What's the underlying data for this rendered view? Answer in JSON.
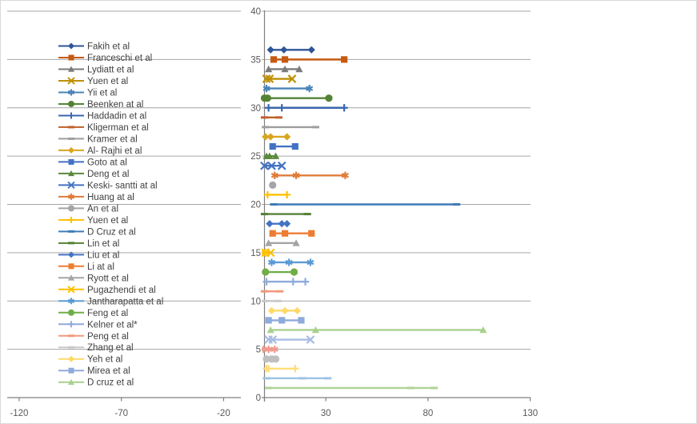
{
  "chart_data": {
    "type": "scatter",
    "subtype": "horizontal-forest-plot-lines-with-markers",
    "title": "",
    "xlabel": "",
    "ylabel": "",
    "grid": "horizontal",
    "legend_position": "overlay-left",
    "x_axis": {
      "min": -120,
      "max": 130,
      "tick_labels": [
        "-120",
        "-70",
        "-20",
        "30",
        "80",
        "130"
      ],
      "tick_values": [
        -120,
        -70,
        -20,
        30,
        80,
        130
      ]
    },
    "y_axis": {
      "min": 0,
      "max": 40,
      "tick_labels": [
        "0",
        "5",
        "10",
        "15",
        "20",
        "25",
        "30",
        "35",
        "40"
      ],
      "tick_values": [
        0,
        5,
        10,
        15,
        20,
        25,
        30,
        35,
        40
      ]
    },
    "series": [
      {
        "label": "Fakih et al",
        "in_legend": true,
        "color": "#2F5597",
        "marker": "diamond",
        "y": 36,
        "x_points": [
          3,
          9.5,
          23
        ]
      },
      {
        "label": "Franceschi et al",
        "in_legend": true,
        "color": "#C55A11",
        "marker": "square",
        "y": 35,
        "x_points": [
          4.5,
          10,
          39
        ]
      },
      {
        "label": "Lydiatt et al",
        "in_legend": true,
        "color": "#7B7B7B",
        "marker": "triangle",
        "y": 34,
        "x_points": [
          2,
          10,
          17
        ]
      },
      {
        "label": "Yuen et al",
        "in_legend": true,
        "color": "#BF8F00",
        "marker": "x",
        "y": 33,
        "x_points": [
          1,
          2.5,
          13.5
        ]
      },
      {
        "label": "Yii et al",
        "in_legend": true,
        "color": "#4A84B8",
        "marker": "asterisk",
        "y": 32,
        "x_points": [
          1,
          22
        ]
      },
      {
        "label": "Beenken at al",
        "in_legend": true,
        "color": "#548235",
        "marker": "circle",
        "y": 31,
        "x_points": [
          0,
          1.5,
          31.5
        ]
      },
      {
        "label": "Haddadin et al",
        "in_legend": true,
        "color": "#3A66AE",
        "marker": "plus",
        "y": 30,
        "x_points": [
          2,
          8.5,
          39
        ]
      },
      {
        "label": "Kligerman et al",
        "in_legend": true,
        "color": "#C0612B",
        "marker": "dash",
        "y": 29,
        "x_points": [
          0,
          7
        ]
      },
      {
        "label": "Kramer et al",
        "in_legend": true,
        "color": "#9E9E9E",
        "marker": "dash",
        "y": 28,
        "x_points": [
          0.5,
          25
        ]
      },
      {
        "label": "Al- Rajhi et al",
        "in_legend": true,
        "color": "#D9A521",
        "marker": "diamond",
        "y": 27,
        "x_points": [
          0.5,
          3,
          11
        ]
      },
      {
        "label": "Goto at al",
        "in_legend": true,
        "color": "#4472C4",
        "marker": "square",
        "y": 26,
        "x_points": [
          4,
          15
        ]
      },
      {
        "label": "Deng et al",
        "in_legend": true,
        "color": "#5A8A3C",
        "marker": "triangle",
        "y": 25,
        "x_points": [
          1,
          2.5,
          5.5
        ]
      },
      {
        "label": "Keski- santti at al",
        "in_legend": true,
        "color": "#4472C4",
        "marker": "x",
        "y": 24,
        "x_points": [
          0,
          3.5,
          8.5
        ]
      },
      {
        "label": "Huang at al",
        "in_legend": true,
        "color": "#E07B39",
        "marker": "asterisk",
        "y": 23,
        "x_points": [
          5,
          15.5,
          39.5
        ]
      },
      {
        "label": "An et al",
        "in_legend": true,
        "color": "#A5A5A5",
        "marker": "circle",
        "y": 22,
        "x_points": [
          4
        ]
      },
      {
        "label": "Yuen et al",
        "in_legend": true,
        "color": "#FFC000",
        "marker": "plus",
        "y": 21,
        "x_points": [
          1.5,
          11
        ]
      },
      {
        "label": "D Cruz et al",
        "in_legend": true,
        "color": "#3E7CB8",
        "marker": "dash",
        "y": 20,
        "x_points": [
          4.5,
          94
        ]
      },
      {
        "label": "Lin et al",
        "in_legend": true,
        "color": "#548235",
        "marker": "dash",
        "y": 19,
        "x_points": [
          0,
          21
        ]
      },
      {
        "label": "Liu et al",
        "in_legend": true,
        "color": "#4472C4",
        "marker": "diamond",
        "y": 18,
        "x_points": [
          2.5,
          8.5,
          11
        ]
      },
      {
        "label": "Li at al",
        "in_legend": true,
        "color": "#ED7D31",
        "marker": "square",
        "y": 17,
        "x_points": [
          4,
          10,
          23
        ]
      },
      {
        "label": "Ryott et al",
        "in_legend": true,
        "color": "#A5A5A5",
        "marker": "triangle",
        "y": 16,
        "x_points": [
          2,
          15.5
        ]
      },
      {
        "label": "Pugazhendi et al",
        "in_legend": true,
        "color": "#FFC000",
        "marker": "x",
        "y": 15,
        "x_points": [
          -1,
          0.5,
          3
        ]
      },
      {
        "label": "Jantharapatta et al",
        "in_legend": true,
        "color": "#5B9BD5",
        "marker": "asterisk",
        "y": 14,
        "x_points": [
          3.5,
          12,
          22.5
        ]
      },
      {
        "label": "Feng et al",
        "in_legend": true,
        "color": "#70AD47",
        "marker": "circle",
        "y": 13,
        "x_points": [
          0.5,
          14.5
        ]
      },
      {
        "label": "Kelner et al*",
        "in_legend": true,
        "color": "#8FAADC",
        "marker": "plus",
        "y": 12,
        "x_points": [
          1,
          14,
          20
        ]
      },
      {
        "label": "Peng et al",
        "in_legend": true,
        "color": "#F0997A",
        "marker": "dash",
        "y": 11,
        "x_points": [
          0,
          7.5
        ]
      },
      {
        "label": "Zhang et al",
        "in_legend": true,
        "color": "#C9C9C9",
        "marker": "dash",
        "y": 10,
        "x_points": [
          0,
          6.5
        ]
      },
      {
        "label": "Yeh et al",
        "in_legend": true,
        "color": "#FFD966",
        "marker": "diamond",
        "y": 9,
        "x_points": [
          3.5,
          10,
          16
        ]
      },
      {
        "label": "Mirea et al",
        "in_legend": true,
        "color": "#8FAADC",
        "marker": "square",
        "y": 8,
        "x_points": [
          2,
          8.5,
          18
        ]
      },
      {
        "label": "D cruz et al",
        "in_legend": true,
        "color": "#A9D18E",
        "marker": "triangle",
        "y": 7,
        "x_points": [
          3,
          25,
          107
        ]
      },
      {
        "label": "",
        "in_legend": false,
        "color": "#A9BCE2",
        "marker": "x",
        "y": 6,
        "x_points": [
          2,
          4,
          22.5
        ]
      },
      {
        "label": "",
        "in_legend": false,
        "color": "#F19B8E",
        "marker": "asterisk",
        "y": 5,
        "x_points": [
          -0.5,
          2,
          5
        ]
      },
      {
        "label": "",
        "in_legend": false,
        "color": "#BFBFBF",
        "marker": "circle",
        "y": 4,
        "x_points": [
          1,
          3.5,
          5.5
        ]
      },
      {
        "label": "",
        "in_legend": false,
        "color": "#FFDD77",
        "marker": "plus",
        "y": 3,
        "x_points": [
          1,
          2,
          15
        ]
      },
      {
        "label": "",
        "in_legend": false,
        "color": "#9DC3E6",
        "marker": "dash",
        "y": 2,
        "x_points": [
          1,
          18.5,
          31
        ]
      },
      {
        "label": "",
        "in_legend": false,
        "color": "#AFD495",
        "marker": "dash",
        "y": 1,
        "x_points": [
          2,
          71.5,
          83
        ]
      }
    ]
  },
  "colors": {
    "background": "#FFFFFF",
    "chart_border": "#D9D9D9",
    "gridline": "#A6A6A6",
    "axis_line": "#808080",
    "axis_text": "#595959",
    "legend_text": "#404040"
  }
}
